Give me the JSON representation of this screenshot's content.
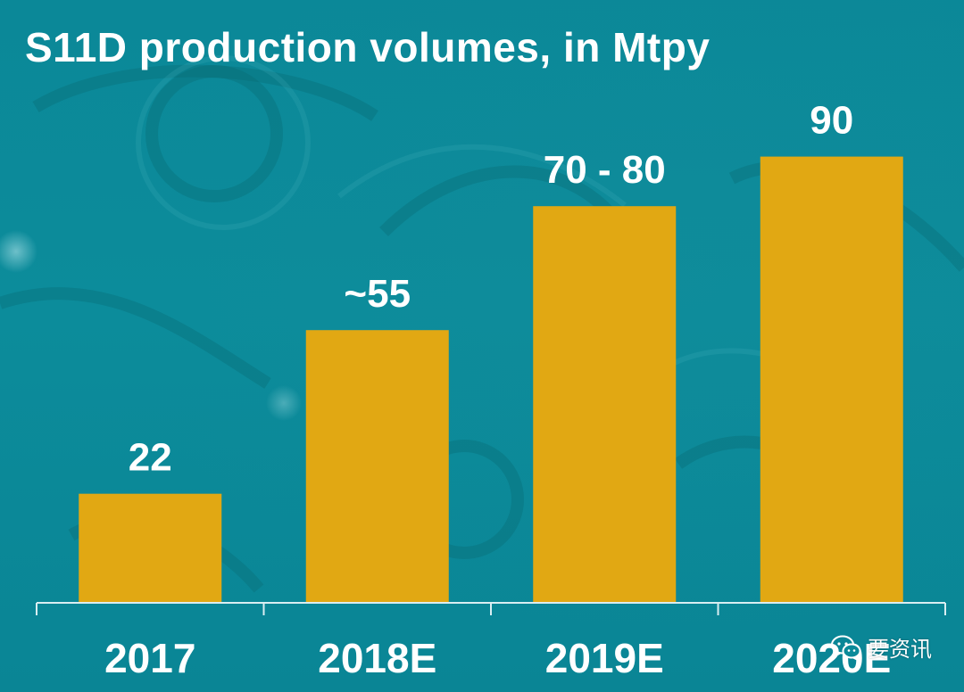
{
  "chart_data": {
    "type": "bar",
    "title": "S11D production volumes, in Mtpy",
    "xlabel": "",
    "ylabel": "",
    "ylim": [
      0,
      100
    ],
    "grid": false,
    "legend": "none",
    "categories": [
      "2017",
      "2018E",
      "2019E",
      "2020E"
    ],
    "values": [
      22,
      55,
      80,
      90
    ],
    "data_labels": [
      "22",
      "~55",
      "70 - 80",
      "90"
    ],
    "bar_color": "#e1a813",
    "axis_color": "#d9eef2",
    "background_color": "#0b8a99",
    "label_color": "#ffffff"
  },
  "watermark": {
    "icon": "wechat-icon",
    "text": "要资讯"
  }
}
